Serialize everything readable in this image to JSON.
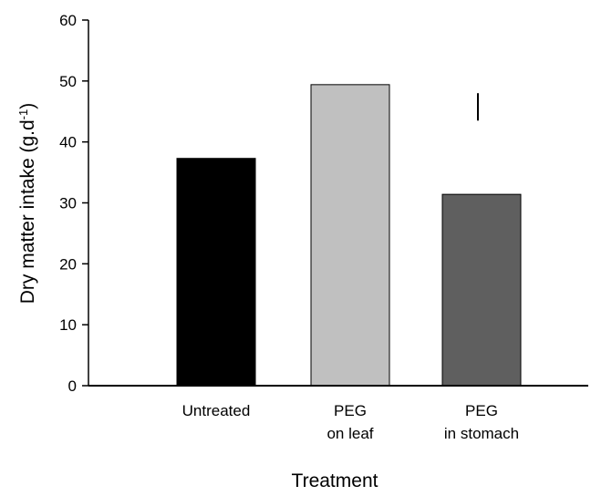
{
  "chart_data": {
    "type": "bar",
    "categories": [
      [
        "Untreated"
      ],
      [
        "PEG",
        "on leaf"
      ],
      [
        "PEG",
        "in stomach"
      ]
    ],
    "values": [
      37.3,
      49.4,
      31.4
    ],
    "colors": [
      "#000000",
      "#c0c0c0",
      "#5f5f5f"
    ],
    "ylim": [
      0,
      60
    ],
    "yticks": [
      0,
      10,
      20,
      30,
      40,
      50,
      60
    ],
    "ylabel": "Dry matter intake (g.d",
    "ylabel_superscript": "-1",
    "ylabel_suffix": ")",
    "xlabel": "Treatment",
    "error_bar": {
      "low": 43.5,
      "high": 48
    }
  }
}
